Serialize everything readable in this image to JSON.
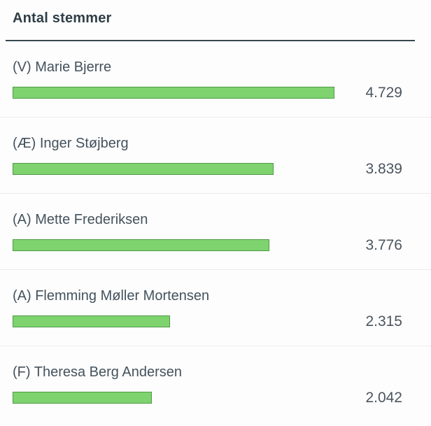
{
  "chart": {
    "title": "Antal stemmer",
    "colors": {
      "background": "#fdfdfd",
      "bar_fill": "#7ed36f",
      "bar_border": "#4f9a44",
      "title_text": "#2f3e46",
      "label_text": "#44525c",
      "value_text": "#4b555e",
      "divider_dark": "#37474f",
      "divider_light": "#ececec"
    }
  },
  "chart_data": {
    "type": "bar",
    "orientation": "horizontal",
    "title": "Antal stemmer",
    "categories": [
      "(V) Marie Bjerre",
      "(Æ) Inger Støjberg",
      "(A) Mette Frederiksen",
      "(A) Flemming Møller Mortensen",
      "(F) Theresa Berg Andersen"
    ],
    "values": [
      4729,
      3839,
      3776,
      2315,
      2042
    ],
    "value_labels": [
      "4.729",
      "3.839",
      "3.776",
      "2.315",
      "2.042"
    ],
    "max_value": 4729,
    "xlabel": "",
    "ylabel": "",
    "grid": false,
    "legend": false,
    "bar_color": "#7ed36f"
  }
}
